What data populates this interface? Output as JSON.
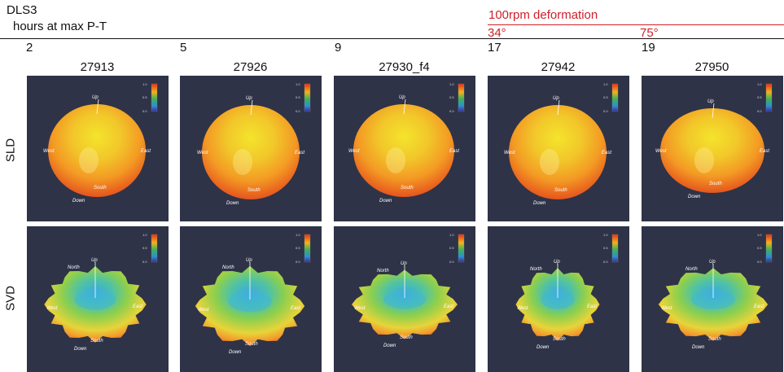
{
  "figure": {
    "title": "DLS3",
    "subtitle": "hours at max P-T",
    "deformation_label": "100rpm deformation",
    "angles": [
      "34°",
      "75°"
    ],
    "hours": [
      "2",
      "5",
      "9",
      "17",
      "19"
    ],
    "samples": [
      "27913",
      "27926",
      "27930_f4",
      "27942",
      "27950"
    ],
    "rows": [
      "SLD",
      "SVD"
    ],
    "colors": {
      "panel_bg": "#2f3347",
      "accent_red": "#d0202a"
    },
    "panel_labels": {
      "up": "Up",
      "down": "Down",
      "north": "North",
      "south": "South",
      "east": "East",
      "west": "West",
      "colorbar_ticks": [
        "1.0",
        "0.5",
        "0.0"
      ]
    }
  }
}
